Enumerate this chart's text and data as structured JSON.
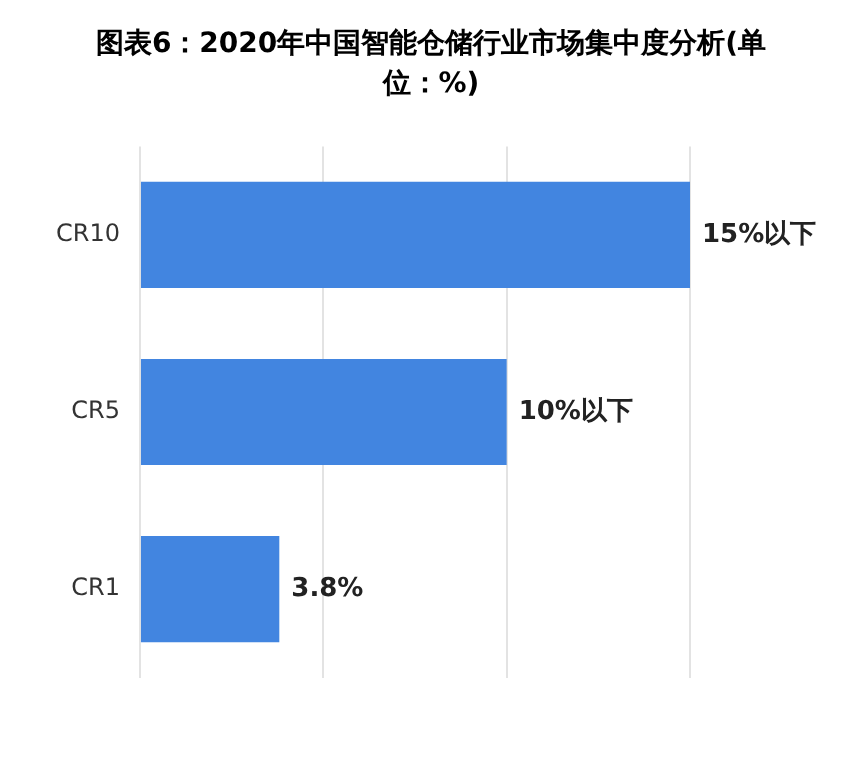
{
  "chart_data": {
    "type": "bar",
    "orientation": "horizontal",
    "title": "图表6：2020年中国智能仓储行业市场集中度分析(单位：%)",
    "categories": [
      "CR10",
      "CR5",
      "CR1"
    ],
    "values": [
      15,
      10,
      3.8
    ],
    "value_labels": [
      "15%以下",
      "10%以下",
      "3.8%"
    ],
    "color": "#4285e0",
    "xlim": [
      0,
      15
    ],
    "xticks": [
      {
        "value": 0,
        "label": null
      },
      {
        "value": 5,
        "label": null
      },
      {
        "value": 10,
        "label": null
      },
      {
        "value": 15,
        "label": null
      }
    ],
    "grid": "x",
    "tick_labels": "y",
    "legend": false
  }
}
